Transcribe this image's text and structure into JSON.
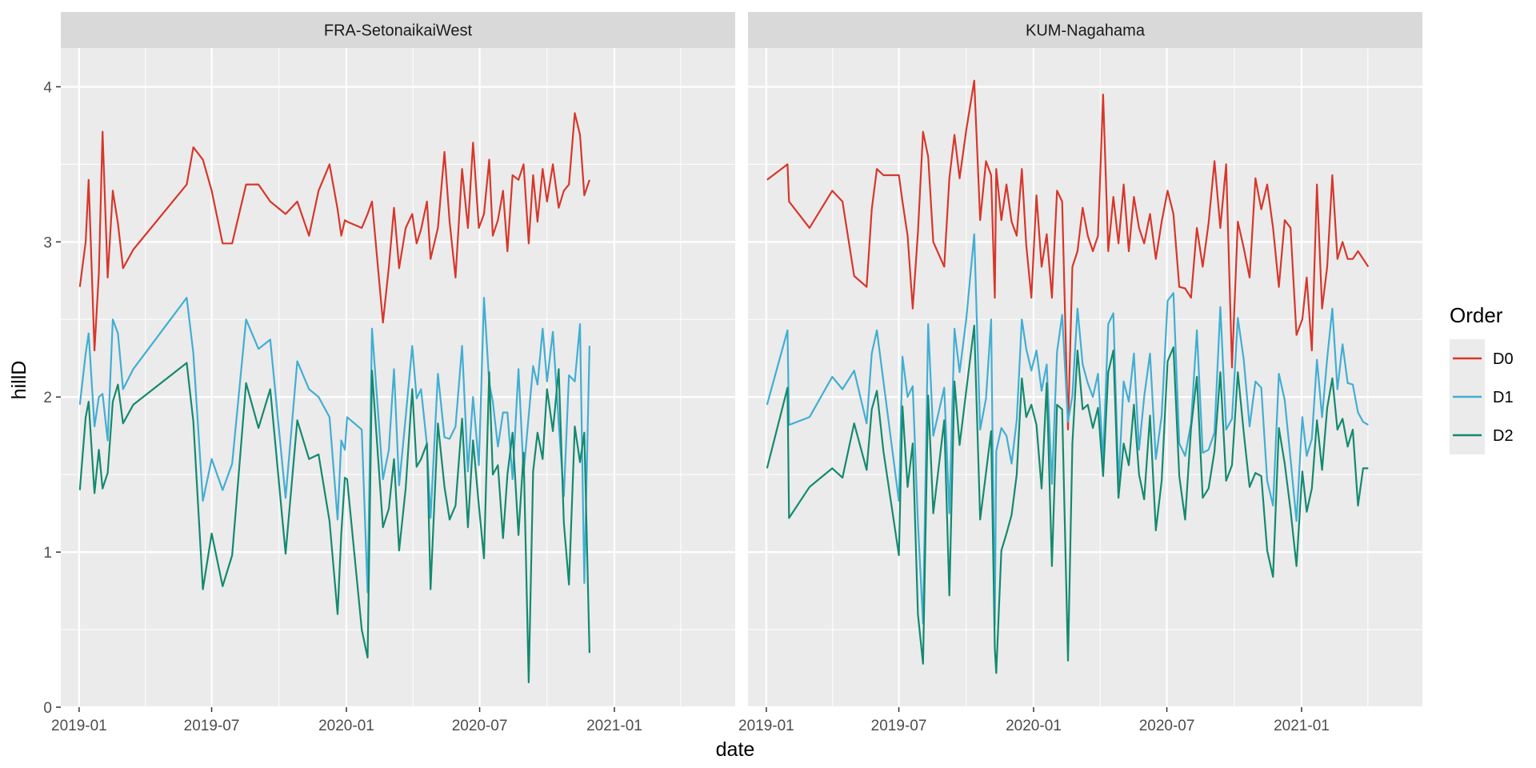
{
  "colors": {
    "panel_bg": "#ebebeb",
    "strip_bg": "#d9d9d9",
    "grid": "#ffffff",
    "D0": "#d7372b",
    "D1": "#41aed3",
    "D2": "#138a6f"
  },
  "chart_data": {
    "type": "line",
    "xlabel": "date",
    "ylabel": "hillD",
    "ylim": [
      0,
      4.25
    ],
    "yticks": [
      0,
      1,
      2,
      3,
      4
    ],
    "xlim": [
      "2018-12-07",
      "2021-06-15"
    ],
    "xticks": [
      "2019-01",
      "2019-07",
      "2020-01",
      "2020-07",
      "2021-01"
    ],
    "grid": true,
    "legend": {
      "title": "Order",
      "position": "right",
      "entries": [
        "D0",
        "D1",
        "D2"
      ]
    },
    "panels": [
      {
        "title": "FRA-SetonaikaiWest",
        "x": [
          "2019-01-02",
          "2019-01-10",
          "2019-01-14",
          "2019-01-22",
          "2019-01-28",
          "2019-02-02",
          "2019-02-09",
          "2019-02-16",
          "2019-02-23",
          "2019-03-02",
          "2019-03-16",
          "2019-05-28",
          "2019-06-06",
          "2019-06-19",
          "2019-07-01",
          "2019-07-16",
          "2019-07-29",
          "2019-08-17",
          "2019-09-03",
          "2019-09-19",
          "2019-10-10",
          "2019-10-26",
          "2019-11-11",
          "2019-11-24",
          "2019-12-09",
          "2019-12-20",
          "2019-12-25",
          "2019-12-30",
          "2020-01-02",
          "2020-01-22",
          "2020-01-30",
          "2020-02-05",
          "2020-02-20",
          "2020-02-28",
          "2020-03-06",
          "2020-03-13",
          "2020-03-22",
          "2020-03-31",
          "2020-04-06",
          "2020-04-12",
          "2020-04-20",
          "2020-04-25",
          "2020-05-05",
          "2020-05-14",
          "2020-05-21",
          "2020-05-29",
          "2020-06-07",
          "2020-06-15",
          "2020-06-22",
          "2020-06-30",
          "2020-07-07",
          "2020-07-14",
          "2020-07-19",
          "2020-07-26",
          "2020-08-02",
          "2020-08-08",
          "2020-08-15",
          "2020-08-23",
          "2020-08-30",
          "2020-09-06",
          "2020-09-12",
          "2020-09-18",
          "2020-09-25",
          "2020-10-01",
          "2020-10-09",
          "2020-10-17",
          "2020-10-24",
          "2020-10-31",
          "2020-11-08",
          "2020-11-15",
          "2020-11-21",
          "2020-11-28"
        ],
        "series": [
          {
            "name": "D0",
            "values": [
              2.71,
              3.0,
              3.4,
              2.3,
              2.8,
              3.71,
              2.77,
              3.33,
              3.12,
              2.83,
              2.95,
              3.37,
              3.61,
              3.53,
              3.33,
              2.99,
              2.99,
              3.37,
              3.37,
              3.26,
              3.18,
              3.26,
              3.04,
              3.33,
              3.5,
              3.21,
              3.04,
              3.14,
              3.13,
              3.09,
              3.18,
              3.26,
              2.48,
              2.84,
              3.22,
              2.83,
              3.09,
              3.18,
              2.99,
              3.08,
              3.26,
              2.89,
              3.09,
              3.58,
              3.13,
              2.77,
              3.47,
              3.09,
              3.64,
              3.09,
              3.18,
              3.53,
              3.04,
              3.14,
              3.33,
              2.94,
              3.43,
              3.4,
              3.5,
              2.99,
              3.43,
              3.13,
              3.47,
              3.26,
              3.5,
              3.22,
              3.33,
              3.37,
              3.83,
              3.69,
              3.3,
              3.4
            ]
          },
          {
            "name": "D1",
            "values": [
              1.95,
              2.28,
              2.41,
              1.81,
              2.0,
              2.02,
              1.72,
              2.5,
              2.41,
              2.05,
              2.18,
              2.64,
              2.28,
              1.33,
              1.6,
              1.4,
              1.57,
              2.5,
              2.31,
              2.37,
              1.35,
              2.23,
              2.05,
              2.0,
              1.87,
              1.21,
              1.72,
              1.66,
              1.87,
              1.79,
              0.74,
              2.44,
              1.47,
              1.66,
              2.18,
              1.43,
              1.87,
              2.33,
              1.99,
              2.05,
              1.69,
              1.22,
              2.15,
              1.74,
              1.73,
              1.81,
              2.33,
              1.52,
              2.0,
              1.56,
              2.64,
              2.09,
              1.97,
              1.68,
              1.9,
              1.9,
              1.47,
              2.18,
              1.51,
              1.88,
              2.2,
              2.08,
              2.44,
              2.1,
              2.42,
              1.83,
              1.36,
              2.14,
              2.1,
              2.47,
              0.8,
              2.33
            ]
          },
          {
            "name": "D2",
            "values": [
              1.4,
              1.87,
              1.97,
              1.38,
              1.66,
              1.41,
              1.51,
              1.97,
              2.08,
              1.83,
              1.95,
              2.22,
              1.84,
              0.76,
              1.12,
              0.78,
              0.98,
              2.09,
              1.8,
              2.05,
              0.99,
              1.85,
              1.6,
              1.63,
              1.2,
              0.6,
              1.12,
              1.48,
              1.47,
              0.5,
              0.32,
              2.17,
              1.16,
              1.28,
              1.6,
              1.01,
              1.41,
              2.05,
              1.55,
              1.6,
              1.7,
              0.76,
              1.83,
              1.42,
              1.21,
              1.3,
              1.86,
              1.16,
              1.72,
              1.3,
              0.96,
              2.16,
              1.5,
              1.56,
              1.09,
              1.5,
              1.77,
              1.11,
              1.64,
              0.16,
              1.52,
              1.77,
              1.6,
              2.05,
              1.78,
              2.18,
              1.19,
              0.79,
              1.81,
              1.58,
              1.77,
              0.35
            ]
          }
        ]
      },
      {
        "title": "KUM-Nagahama",
        "x": [
          "2019-01-02",
          "2019-01-30",
          "2019-02-01",
          "2019-03-01",
          "2019-04-01",
          "2019-04-15",
          "2019-05-01",
          "2019-05-18",
          "2019-05-25",
          "2019-06-01",
          "2019-06-10",
          "2019-07-01",
          "2019-07-06",
          "2019-07-13",
          "2019-07-20",
          "2019-07-27",
          "2019-08-03",
          "2019-08-10",
          "2019-08-17",
          "2019-09-01",
          "2019-09-08",
          "2019-09-15",
          "2019-09-22",
          "2019-10-01",
          "2019-10-12",
          "2019-10-20",
          "2019-10-28",
          "2019-11-04",
          "2019-11-09",
          "2019-11-11",
          "2019-11-18",
          "2019-11-25",
          "2019-12-02",
          "2019-12-09",
          "2019-12-16",
          "2019-12-22",
          "2019-12-29",
          "2020-01-05",
          "2020-01-12",
          "2020-01-19",
          "2020-01-26",
          "2020-02-02",
          "2020-02-09",
          "2020-02-17",
          "2020-02-23",
          "2020-03-01",
          "2020-03-08",
          "2020-03-15",
          "2020-03-22",
          "2020-03-29",
          "2020-04-05",
          "2020-04-12",
          "2020-04-19",
          "2020-04-26",
          "2020-05-03",
          "2020-05-10",
          "2020-05-17",
          "2020-05-24",
          "2020-05-31",
          "2020-06-08",
          "2020-06-16",
          "2020-06-24",
          "2020-07-02",
          "2020-07-10",
          "2020-07-18",
          "2020-07-26",
          "2020-08-03",
          "2020-08-11",
          "2020-08-19",
          "2020-08-27",
          "2020-09-04",
          "2020-09-12",
          "2020-09-20",
          "2020-09-28",
          "2020-10-06",
          "2020-10-14",
          "2020-10-22",
          "2020-10-30",
          "2020-11-07",
          "2020-11-15",
          "2020-11-23",
          "2020-12-01",
          "2020-12-09",
          "2020-12-17",
          "2020-12-25",
          "2021-01-02",
          "2021-01-08",
          "2021-01-15",
          "2021-01-22",
          "2021-01-29",
          "2021-02-05",
          "2021-02-12",
          "2021-02-19",
          "2021-02-26",
          "2021-03-05",
          "2021-03-12",
          "2021-03-19",
          "2021-03-26",
          "2021-04-02"
        ],
        "series": [
          {
            "name": "D0",
            "values": [
              3.4,
              3.5,
              3.26,
              3.09,
              3.33,
              3.26,
              2.78,
              2.71,
              3.21,
              3.47,
              3.43,
              3.43,
              3.26,
              3.04,
              2.57,
              3.06,
              3.71,
              3.55,
              3.0,
              2.84,
              3.41,
              3.69,
              3.41,
              3.72,
              4.04,
              3.14,
              3.52,
              3.43,
              2.64,
              3.47,
              3.14,
              3.37,
              3.13,
              3.04,
              3.47,
              2.98,
              2.64,
              3.3,
              2.84,
              3.05,
              2.64,
              3.33,
              3.26,
              1.79,
              2.84,
              2.94,
              3.22,
              3.04,
              2.94,
              3.04,
              3.95,
              2.94,
              3.29,
              2.99,
              3.37,
              2.94,
              3.29,
              3.09,
              2.99,
              3.18,
              2.89,
              3.13,
              3.33,
              3.18,
              2.71,
              2.7,
              2.64,
              3.09,
              2.84,
              3.12,
              3.52,
              3.09,
              3.5,
              2.19,
              3.13,
              2.96,
              2.77,
              3.41,
              3.21,
              3.37,
              3.09,
              2.71,
              3.14,
              3.09,
              2.4,
              2.5,
              2.77,
              2.3,
              3.37,
              2.57,
              2.84,
              3.43,
              2.89,
              3.0,
              2.89,
              2.89,
              2.94,
              2.89,
              2.84
            ]
          },
          {
            "name": "D1",
            "values": [
              1.95,
              2.43,
              1.82,
              1.87,
              2.13,
              2.05,
              2.17,
              1.83,
              2.28,
              2.43,
              2.1,
              1.33,
              2.26,
              2.0,
              2.07,
              1.19,
              0.54,
              2.47,
              1.75,
              2.06,
              1.25,
              2.44,
              2.16,
              2.5,
              3.05,
              1.79,
              1.99,
              2.5,
              0.53,
              1.65,
              1.8,
              1.75,
              1.57,
              1.85,
              2.5,
              2.31,
              2.17,
              2.3,
              2.04,
              2.21,
              1.44,
              2.29,
              2.53,
              1.84,
              2.01,
              2.57,
              2.21,
              2.09,
              2.0,
              2.15,
              1.6,
              2.47,
              2.54,
              1.44,
              2.1,
              1.97,
              2.28,
              1.66,
              2.0,
              2.28,
              1.6,
              1.88,
              2.62,
              2.67,
              1.7,
              1.62,
              1.83,
              2.43,
              1.64,
              1.66,
              1.77,
              2.58,
              1.79,
              1.86,
              2.51,
              2.24,
              1.81,
              2.1,
              2.06,
              1.46,
              1.3,
              2.15,
              1.98,
              1.6,
              1.2,
              1.87,
              1.62,
              1.73,
              2.24,
              1.87,
              2.25,
              2.57,
              2.05,
              2.34,
              2.09,
              2.08,
              1.9,
              1.84,
              1.82
            ]
          },
          {
            "name": "D2",
            "values": [
              1.54,
              2.06,
              1.22,
              1.42,
              1.54,
              1.48,
              1.83,
              1.53,
              1.92,
              2.04,
              1.65,
              0.98,
              1.94,
              1.42,
              1.7,
              0.6,
              0.28,
              2.01,
              1.25,
              1.85,
              0.72,
              2.1,
              1.69,
              2.04,
              2.46,
              1.21,
              1.51,
              1.78,
              0.38,
              0.22,
              1.01,
              1.12,
              1.24,
              1.5,
              2.12,
              1.87,
              1.95,
              1.82,
              1.41,
              2.09,
              0.91,
              1.95,
              1.92,
              0.3,
              1.7,
              2.3,
              1.92,
              1.95,
              1.8,
              1.93,
              1.49,
              2.16,
              2.3,
              1.35,
              1.7,
              1.56,
              1.95,
              1.5,
              1.34,
              1.88,
              1.14,
              1.46,
              2.23,
              2.32,
              1.49,
              1.21,
              1.8,
              2.13,
              1.35,
              1.41,
              1.65,
              2.16,
              1.46,
              1.56,
              2.16,
              1.77,
              1.42,
              1.51,
              1.49,
              1.01,
              0.84,
              1.8,
              1.57,
              1.27,
              0.91,
              1.52,
              1.26,
              1.41,
              1.85,
              1.53,
              1.93,
              2.12,
              1.79,
              1.86,
              1.68,
              1.79,
              1.3,
              1.54,
              1.54
            ]
          }
        ]
      }
    ]
  }
}
